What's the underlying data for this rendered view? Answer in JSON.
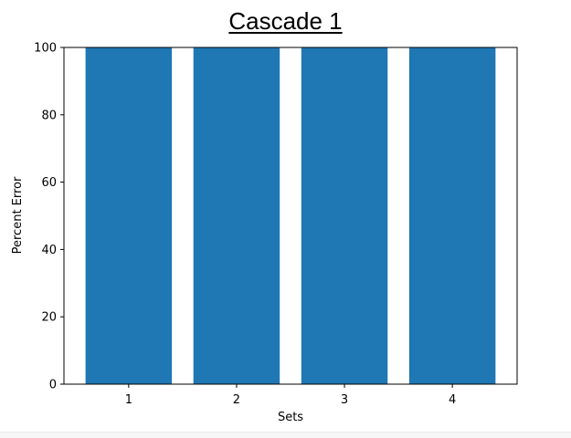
{
  "chart_data": {
    "type": "bar",
    "title": "Cascade 1",
    "xlabel": "Sets",
    "ylabel": "Percent Error",
    "categories": [
      "1",
      "2",
      "3",
      "4"
    ],
    "values": [
      100,
      100,
      100,
      100
    ],
    "ylim": [
      0,
      100
    ],
    "yticks": [
      0,
      20,
      40,
      60,
      80,
      100
    ],
    "grid": false,
    "legend": "none",
    "bar_color": "#1f77b4"
  }
}
